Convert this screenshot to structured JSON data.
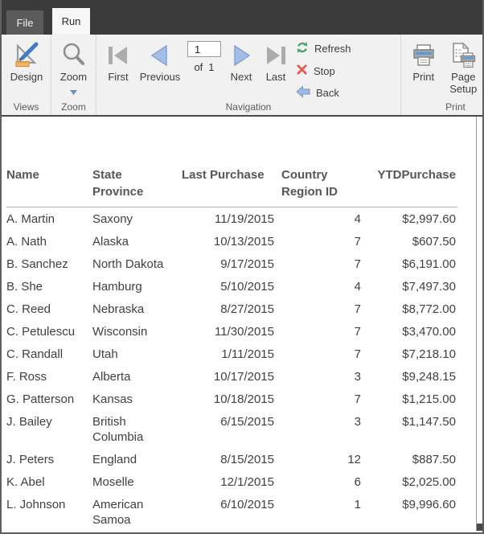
{
  "tabs": {
    "file": "File",
    "run": "Run"
  },
  "ribbon": {
    "views": {
      "design": "Design",
      "group": "Views"
    },
    "zoom": {
      "button": "Zoom",
      "group": "Zoom"
    },
    "navigation": {
      "first": "First",
      "previous": "Previous",
      "page_value": "1",
      "of": "of",
      "total_pages": "1",
      "next": "Next",
      "last": "Last",
      "refresh": "Refresh",
      "stop": "Stop",
      "back": "Back",
      "group": "Navigation"
    },
    "print": {
      "print": "Print",
      "page_setup": "Page Setup",
      "group": "Print"
    }
  },
  "colors": {
    "tab_bar": "#3b3b3b",
    "nav_enabled_blue": "#a3bde8",
    "nav_disabled_gray": "#acacac",
    "refresh_green": "#4aa170",
    "stop_red": "#e05a52",
    "printer_accent_blue": "#5b9bd5",
    "design_ruler_orange": "#f5b868"
  },
  "table": {
    "columns": [
      "Name",
      "State Province",
      "Last Purchase",
      "Country Region ID",
      "YTDPurchase"
    ],
    "rows": [
      [
        "A. Martin",
        "Saxony",
        "11/19/2015",
        "4",
        "$2,997.60"
      ],
      [
        "A. Nath",
        "Alaska",
        "10/13/2015",
        "7",
        "$607.50"
      ],
      [
        "B. Sanchez",
        "North Dakota",
        "9/17/2015",
        "7",
        "$6,191.00"
      ],
      [
        "B. She",
        "Hamburg",
        "5/10/2015",
        "4",
        "$7,497.30"
      ],
      [
        "C. Reed",
        "Nebraska",
        "8/27/2015",
        "7",
        "$8,772.00"
      ],
      [
        "C. Petulescu",
        "Wisconsin",
        "11/30/2015",
        "7",
        "$3,470.00"
      ],
      [
        "C. Randall",
        "Utah",
        "1/11/2015",
        "7",
        "$7,218.10"
      ],
      [
        "F. Ross",
        "Alberta",
        "10/17/2015",
        "3",
        "$9,248.15"
      ],
      [
        "G. Patterson",
        "Kansas",
        "10/18/2015",
        "7",
        "$1,215.00"
      ],
      [
        "J. Bailey",
        "British Columbia",
        "6/15/2015",
        "3",
        "$1,147.50"
      ],
      [
        "J. Peters",
        "England",
        "8/15/2015",
        "12",
        "$887.50"
      ],
      [
        "K. Abel",
        "Moselle",
        "12/1/2015",
        "6",
        "$2,025.00"
      ],
      [
        "L. Johnson",
        "American Samoa",
        "6/10/2015",
        "1",
        "$9,996.60"
      ]
    ]
  }
}
